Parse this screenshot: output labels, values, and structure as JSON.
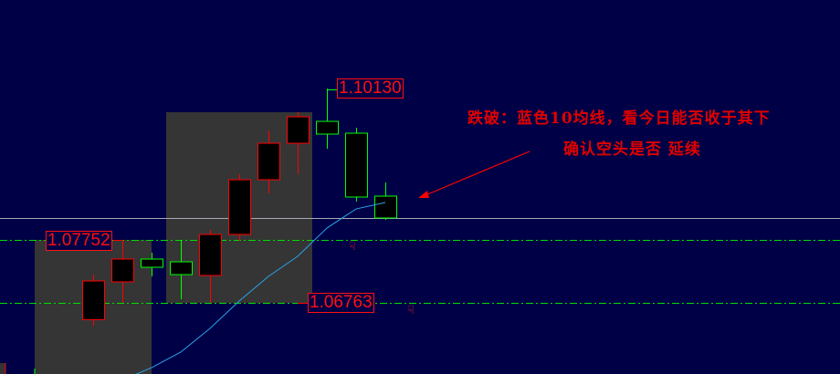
{
  "chart_data": {
    "type": "candlestick",
    "title": "",
    "ylim": [
      1.05645,
      1.11522
    ],
    "grid": false,
    "colors": {
      "background": "#000046",
      "up": "#ff0000",
      "down": "#00ff00",
      "ma": "#29a3e6",
      "shade": "#353535",
      "close_line": "#a8a8b8",
      "level_line": "#00e000"
    },
    "candles": [
      {
        "open": 1.065,
        "high": 1.07207,
        "low": 1.064,
        "close": 1.07107
      },
      {
        "open": 1.07093,
        "high": 1.07752,
        "low": 1.06763,
        "close": 1.07451
      },
      {
        "open": 1.07451,
        "high": 1.07551,
        "low": 1.07179,
        "close": 1.07322
      },
      {
        "open": 1.07408,
        "high": 1.07752,
        "low": 1.0682,
        "close": 1.07207
      },
      {
        "open": 1.07193,
        "high": 1.0791,
        "low": 1.06763,
        "close": 1.07838
      },
      {
        "open": 1.07838,
        "high": 1.08784,
        "low": 1.07738,
        "close": 1.08698
      },
      {
        "open": 1.08698,
        "high": 1.09472,
        "low": 1.08483,
        "close": 1.09271
      },
      {
        "open": 1.09271,
        "high": 1.09759,
        "low": 1.08784,
        "close": 1.09687
      },
      {
        "open": 1.09615,
        "high": 1.1013,
        "low": 1.09185,
        "close": 1.09415
      },
      {
        "open": 1.09429,
        "high": 1.09515,
        "low": 1.08354,
        "close": 1.08426
      },
      {
        "open": 1.0844,
        "high": 1.08655,
        "low": 1.08067,
        "close": 1.08096
      }
    ],
    "ma10": [
      null,
      1.0555,
      1.05745,
      1.05989,
      1.06362,
      1.06792,
      1.07179,
      1.07494,
      1.07938,
      1.08239,
      1.0834
    ],
    "ma_label": "10",
    "levels": [
      {
        "price": 1.07752,
        "label": "1.07752"
      },
      {
        "price": 1.06763,
        "label": "1.06763"
      }
    ],
    "high_label": {
      "price": 1.1013,
      "label": "1.10130"
    },
    "current_close": 1.08096,
    "shaded_zones": [
      {
        "from_candle": -2,
        "to_candle": 2,
        "top": 1.07752
      },
      {
        "from_candle": 3,
        "to_candle": 7,
        "top": 1.09759,
        "bottom": 1.06763
      }
    ]
  },
  "annotation": {
    "line1": "跌破：蓝色10均线，看今日能否收于其下",
    "line2": "确认空头是否 延续"
  },
  "icons": [
    "thumb-down-icon",
    "thumb-down-icon",
    "arrow-icon"
  ]
}
